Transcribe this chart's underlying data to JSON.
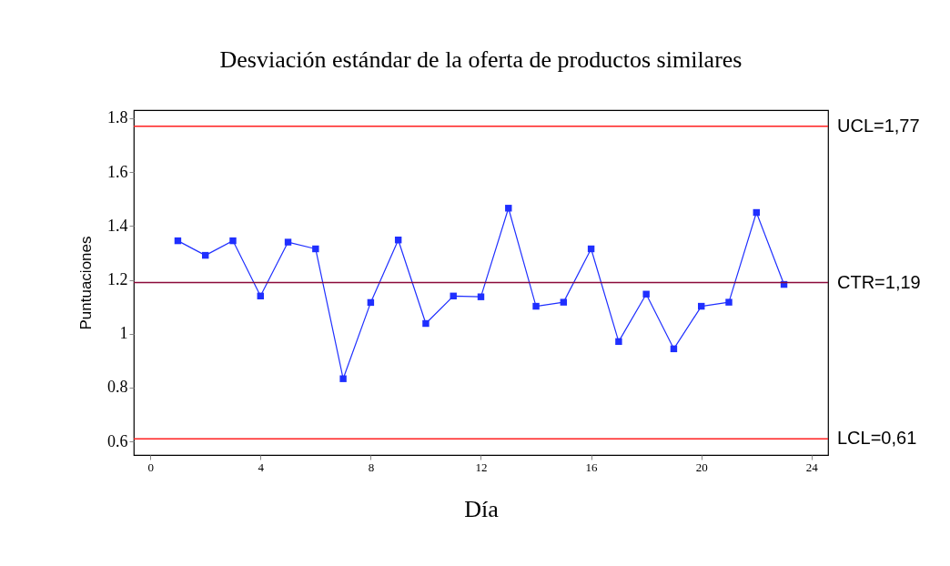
{
  "chart_data": {
    "type": "line",
    "title": "Desviación estándar de la oferta de productos similares",
    "xlabel": "Día",
    "ylabel": "Puntuaciones",
    "x": [
      1,
      2,
      3,
      4,
      5,
      6,
      7,
      8,
      9,
      10,
      11,
      12,
      13,
      14,
      15,
      16,
      17,
      18,
      19,
      20,
      21,
      22,
      23
    ],
    "series": [
      {
        "color": "#1f2fff",
        "values": [
          1.345,
          1.291,
          1.345,
          1.14,
          1.34,
          1.315,
          0.833,
          1.116,
          1.348,
          1.038,
          1.14,
          1.137,
          1.466,
          1.102,
          1.117,
          1.315,
          0.971,
          1.147,
          0.944,
          1.102,
          1.117,
          1.45,
          1.183
        ]
      }
    ],
    "xlim": [
      -0.6,
      24.6
    ],
    "xticks": [
      0,
      4,
      8,
      12,
      16,
      20,
      24
    ],
    "ylim": [
      0.55,
      1.83
    ],
    "yticks": [
      0.6,
      0.8,
      1,
      1.2,
      1.4,
      1.6,
      1.8
    ],
    "ref_lines": [
      {
        "axis": "y",
        "value": 1.77,
        "label": "UCL=1,77",
        "color": "#ff2020"
      },
      {
        "axis": "y",
        "value": 1.19,
        "label": "CTR=1,19",
        "color": "#8b0a3a"
      },
      {
        "axis": "y",
        "value": 0.61,
        "label": "LCL=0,61",
        "color": "#ff2020"
      }
    ],
    "grid": false,
    "marker": "square",
    "line_style": "solid"
  }
}
